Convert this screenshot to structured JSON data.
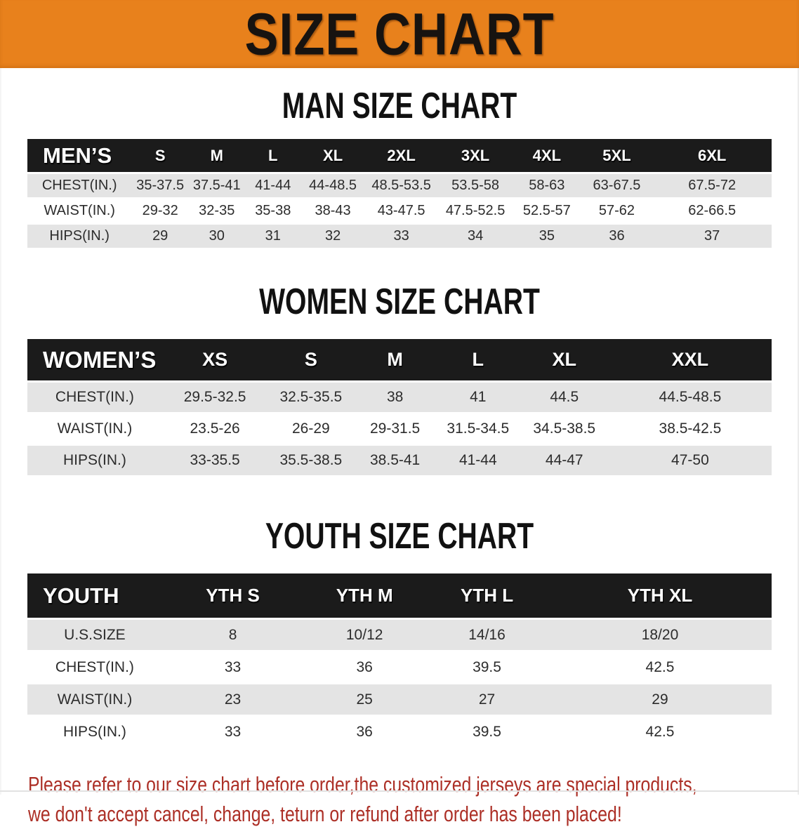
{
  "banner": {
    "title": "SIZE CHART",
    "background": "#e8811c"
  },
  "sections": [
    {
      "heading": "MAN SIZE CHART",
      "label": "MEN’S",
      "columns": [
        "S",
        "M",
        "L",
        "XL",
        "2XL",
        "3XL",
        "4XL",
        "5XL",
        "6XL"
      ],
      "rows": [
        {
          "label": "CHEST(IN.)",
          "values": [
            "35-37.5",
            "37.5-41",
            "41-44",
            "44-48.5",
            "48.5-53.5",
            "53.5-58",
            "58-63",
            "63-67.5",
            "67.5-72"
          ]
        },
        {
          "label": "WAIST(IN.)",
          "values": [
            "29-32",
            "32-35",
            "35-38",
            "38-43",
            "43-47.5",
            "47.5-52.5",
            "52.5-57",
            "57-62",
            "62-66.5"
          ]
        },
        {
          "label": "HIPS(IN.)",
          "values": [
            "29",
            "30",
            "31",
            "32",
            "33",
            "34",
            "35",
            "36",
            "37"
          ]
        }
      ]
    },
    {
      "heading": "WOMEN SIZE CHART",
      "label": "WOMEN’S",
      "columns": [
        "XS",
        "S",
        "M",
        "L",
        "XL",
        "XXL"
      ],
      "rows": [
        {
          "label": "CHEST(IN.)",
          "values": [
            "29.5-32.5",
            "32.5-35.5",
            "38",
            "41",
            "44.5",
            "44.5-48.5"
          ]
        },
        {
          "label": "WAIST(IN.)",
          "values": [
            "23.5-26",
            "26-29",
            "29-31.5",
            "31.5-34.5",
            "34.5-38.5",
            "38.5-42.5"
          ]
        },
        {
          "label": "HIPS(IN.)",
          "values": [
            "33-35.5",
            "35.5-38.5",
            "38.5-41",
            "41-44",
            "44-47",
            "47-50"
          ]
        }
      ]
    },
    {
      "heading": "YOUTH SIZE CHART",
      "label": "YOUTH",
      "columns": [
        "YTH S",
        "YTH M",
        "YTH L",
        "YTH XL"
      ],
      "rows": [
        {
          "label": "U.S.SIZE",
          "values": [
            "8",
            "10/12",
            "14/16",
            "18/20"
          ]
        },
        {
          "label": "CHEST(IN.)",
          "values": [
            "33",
            "36",
            "39.5",
            "42.5"
          ]
        },
        {
          "label": "WAIST(IN.)",
          "values": [
            "23",
            "25",
            "27",
            "29"
          ]
        },
        {
          "label": "HIPS(IN.)",
          "values": [
            "33",
            "36",
            "39.5",
            "42.5"
          ]
        }
      ]
    }
  ],
  "footer": {
    "line1": "Please refer to our size chart before order,the customized jerseys are special products,",
    "line2": "we don't accept cancel, change, teturn or refund after order has been placed!",
    "color": "#ac2f26"
  }
}
